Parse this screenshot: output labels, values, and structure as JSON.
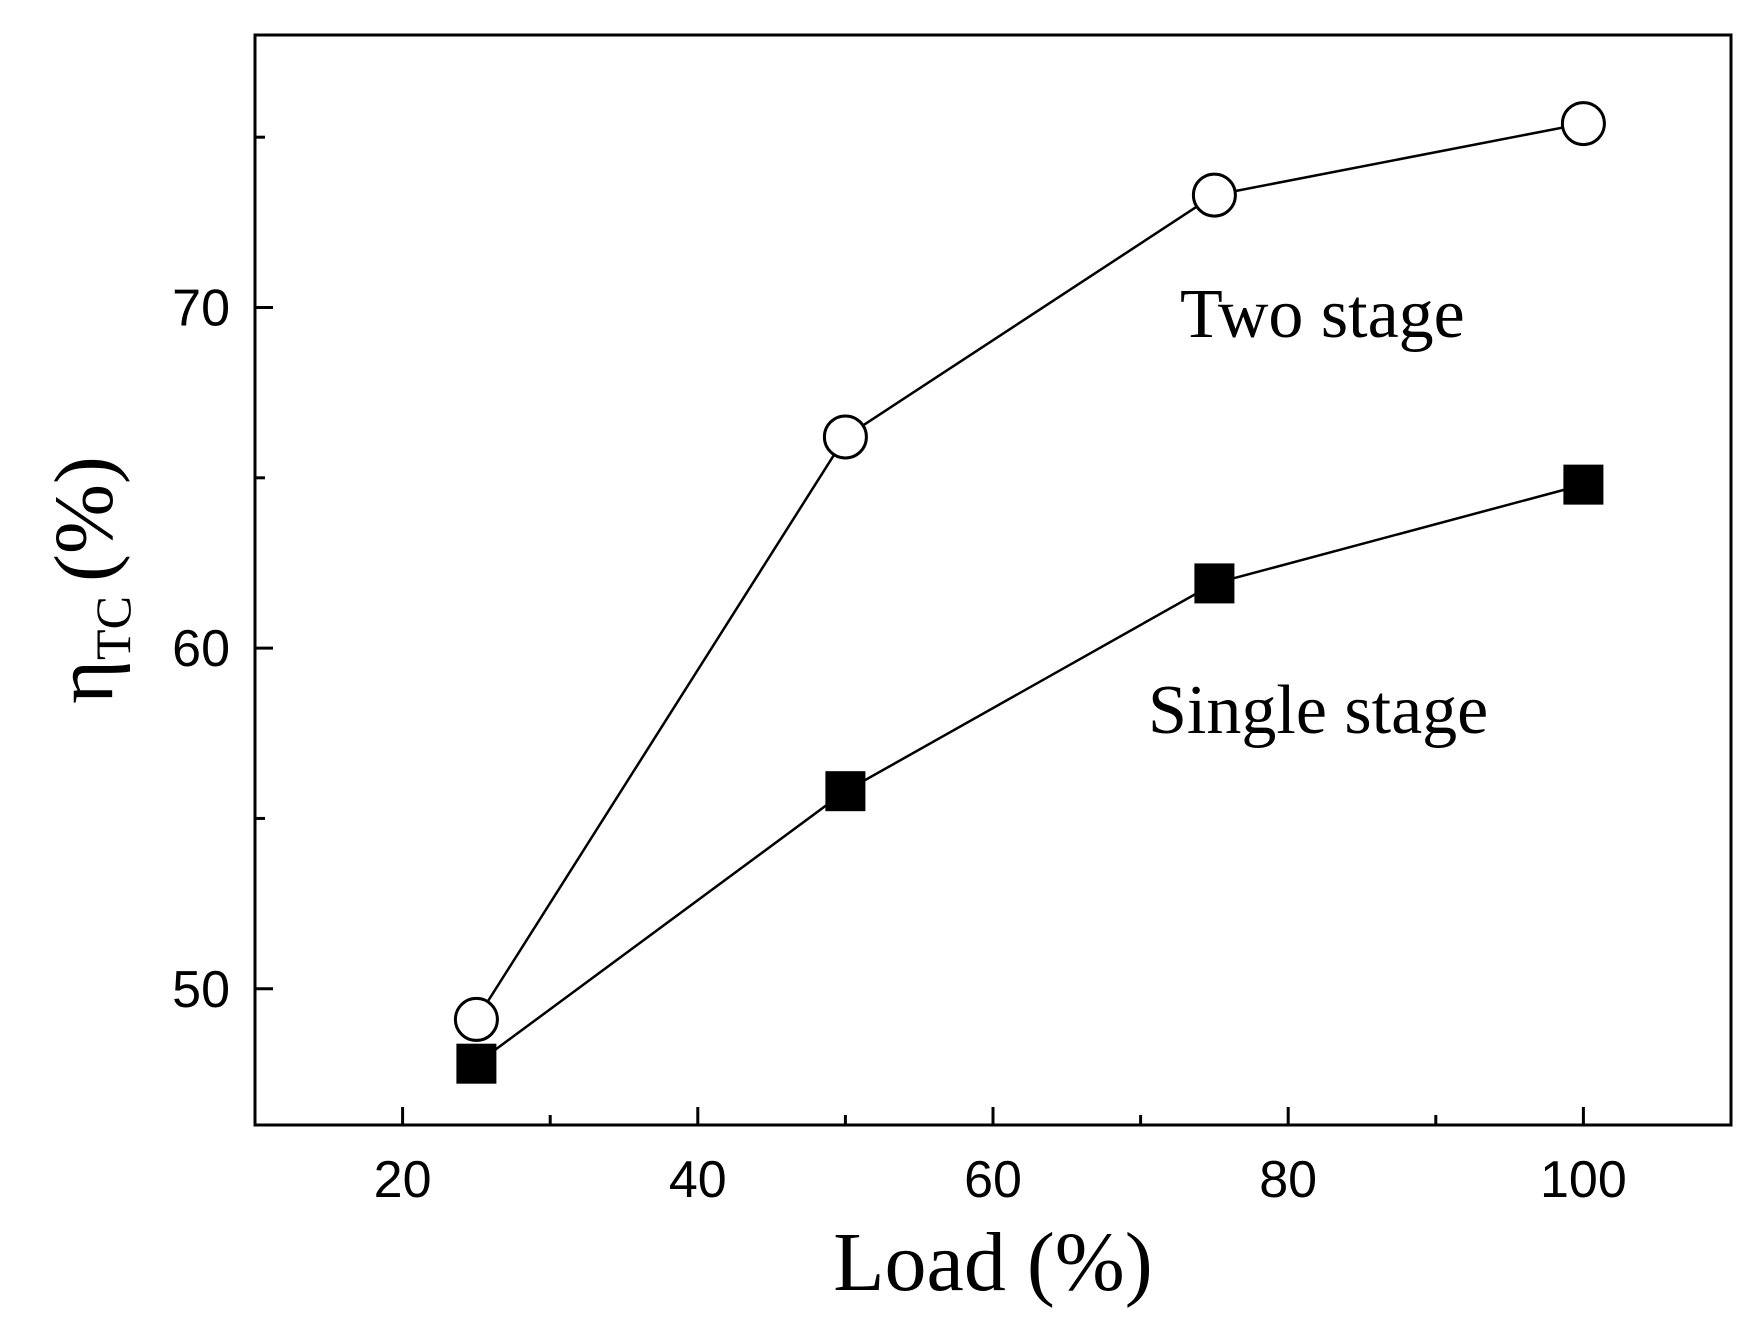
{
  "chart_data": {
    "type": "line",
    "x": [
      25,
      50,
      75,
      100
    ],
    "series": [
      {
        "name": "Two stage",
        "marker": "open-circle",
        "values": [
          49.1,
          66.2,
          73.3,
          75.4
        ]
      },
      {
        "name": "Single stage",
        "marker": "filled-square",
        "values": [
          47.8,
          55.8,
          61.9,
          64.8
        ]
      }
    ],
    "xlim": [
      10,
      110
    ],
    "ylim": [
      46,
      78
    ],
    "xticks": [
      20,
      40,
      60,
      80,
      100
    ],
    "yticks": [
      50,
      60,
      70
    ],
    "x_tick_labels": [
      "20",
      "40",
      "60",
      "80",
      "100"
    ],
    "y_tick_labels": [
      "50",
      "60",
      "70"
    ],
    "xlabel": "Load (%)",
    "ylabel_main": "η",
    "ylabel_sub": "TC",
    "ylabel_unit": "(%)",
    "annotations": [
      "Two stage",
      "Single stage"
    ],
    "grid": false,
    "legend": "none",
    "colors": {
      "line": "#000000",
      "marker_fill_two": "#ffffff",
      "marker_fill_single": "#000000"
    }
  }
}
